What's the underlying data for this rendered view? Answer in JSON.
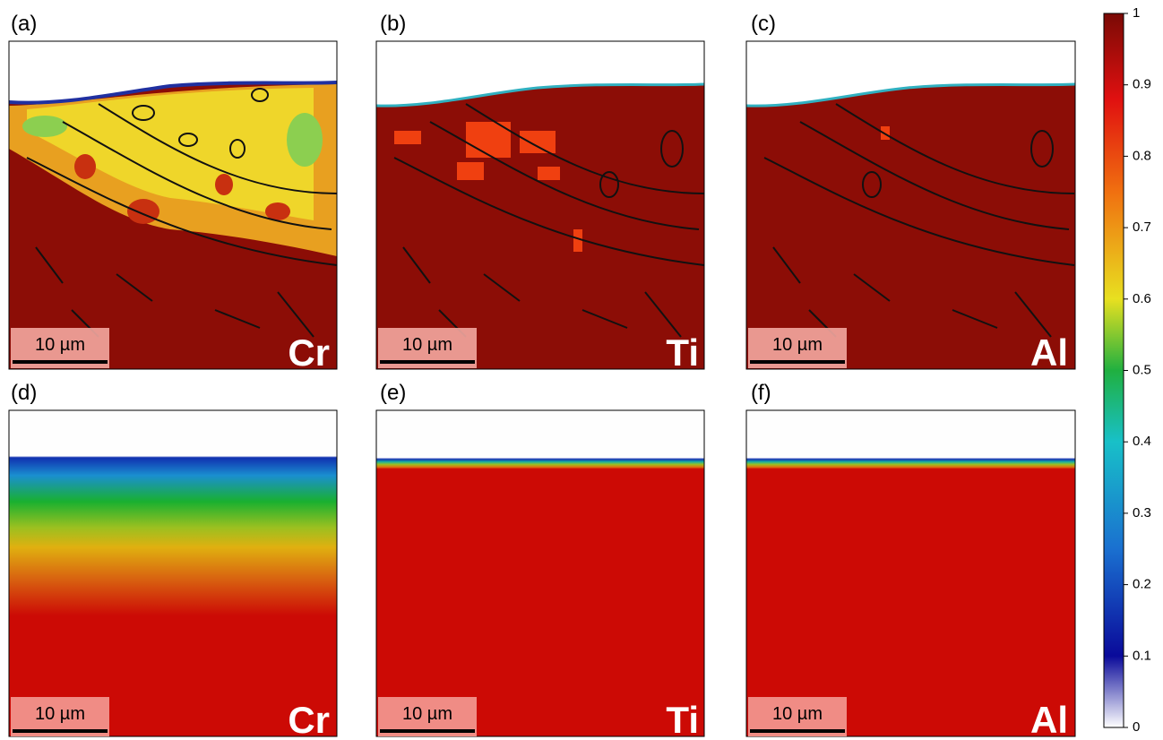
{
  "panels": [
    {
      "label": "(a)",
      "element": "Cr",
      "scale_bar": "10 µm"
    },
    {
      "label": "(b)",
      "element": "Ti",
      "scale_bar": "10 µm"
    },
    {
      "label": "(c)",
      "element": "Al",
      "scale_bar": "10 µm"
    },
    {
      "label": "(d)",
      "element": "Cr",
      "scale_bar": "10 µm"
    },
    {
      "label": "(e)",
      "element": "Ti",
      "scale_bar": "10 µm"
    },
    {
      "label": "(f)",
      "element": "Al",
      "scale_bar": "10 µm"
    }
  ],
  "colorbar": {
    "lim": [
      0,
      1
    ],
    "ticks": [
      0,
      0.1,
      0.2,
      0.3,
      0.4,
      0.5,
      0.6,
      0.7,
      0.8,
      0.9,
      1
    ]
  }
}
